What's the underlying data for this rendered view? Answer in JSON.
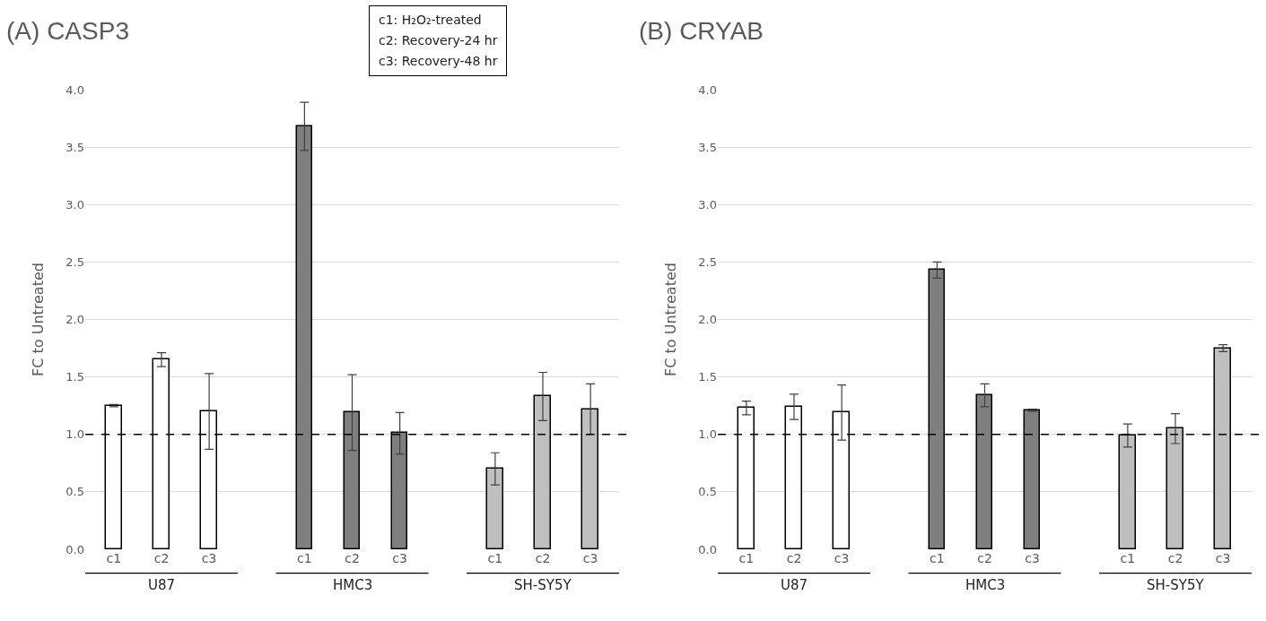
{
  "chart_data": [
    {
      "type": "bar",
      "title": "(A) CASP3",
      "ylabel": "FC to Untreated",
      "categories": [
        "c1",
        "c2",
        "c3",
        null,
        "c1",
        "c2",
        "c3",
        null,
        "c1",
        "c2",
        "c3"
      ],
      "series": [
        {
          "name": "U87",
          "color": "#ffffff",
          "values": [
            1.25,
            1.65,
            1.2,
            null,
            null,
            null,
            null,
            null,
            null,
            null,
            null
          ],
          "errors": [
            0.01,
            0.06,
            0.33,
            null,
            null,
            null,
            null,
            null,
            null,
            null,
            null
          ]
        },
        {
          "name": "HMC3",
          "color": "#7f7f7f",
          "values": [
            null,
            null,
            null,
            null,
            3.68,
            1.19,
            1.01,
            null,
            null,
            null,
            null
          ],
          "errors": [
            null,
            null,
            null,
            null,
            0.21,
            0.33,
            0.18,
            null,
            null,
            null,
            null
          ]
        },
        {
          "name": "SH-SY5Y",
          "color": "#bfbfbf",
          "values": [
            null,
            null,
            null,
            null,
            null,
            null,
            null,
            null,
            0.7,
            1.33,
            1.22
          ],
          "errors": [
            null,
            null,
            null,
            null,
            null,
            null,
            null,
            null,
            0.14,
            0.21,
            0.22
          ]
        }
      ],
      "ylim": [
        0,
        4
      ],
      "yticks": [
        {
          "value": 0,
          "label": "0.0"
        },
        0.5,
        {
          "value": 1,
          "label": "1.0"
        },
        1.5,
        {
          "value": 2,
          "label": "2.0"
        },
        2.5,
        {
          "value": 3,
          "label": "3.0"
        },
        3.5,
        {
          "value": 4,
          "label": "4.0"
        }
      ],
      "grid": "y",
      "ref_lines": [
        {
          "axis": "y",
          "value": 1,
          "color": "#000000",
          "line_style": "dashed"
        }
      ],
      "annotations": [
        "c1:  H₂O₂-treated",
        "c2:  Recovery-24 hr",
        "c3:  Recovery-48 hr"
      ]
    },
    {
      "type": "bar",
      "title": "(B) CRYAB",
      "ylabel": "FC to Untreated",
      "categories": [
        "c1",
        "c2",
        "c3",
        null,
        "c1",
        "c2",
        "c3",
        null,
        "c1",
        "c2",
        "c3"
      ],
      "series": [
        {
          "name": "U87",
          "color": "#ffffff",
          "values": [
            1.23,
            1.24,
            1.19,
            null,
            null,
            null,
            null,
            null,
            null,
            null,
            null
          ],
          "errors": [
            0.06,
            0.11,
            0.24,
            null,
            null,
            null,
            null,
            null,
            null,
            null,
            null
          ]
        },
        {
          "name": "HMC3",
          "color": "#7f7f7f",
          "values": [
            null,
            null,
            null,
            null,
            2.43,
            1.34,
            1.21,
            null,
            null,
            null,
            null
          ],
          "errors": [
            null,
            null,
            null,
            null,
            0.07,
            0.1,
            0.01,
            null,
            null,
            null,
            null
          ]
        },
        {
          "name": "SH-SY5Y",
          "color": "#bfbfbf",
          "values": [
            null,
            null,
            null,
            null,
            null,
            null,
            null,
            null,
            0.99,
            1.05,
            1.75
          ],
          "errors": [
            null,
            null,
            null,
            null,
            null,
            null,
            null,
            null,
            0.1,
            0.13,
            0.03
          ]
        }
      ],
      "ylim": [
        0,
        4
      ],
      "yticks": [
        {
          "value": 0,
          "label": "0.0"
        },
        0.5,
        {
          "value": 1,
          "label": "1.0"
        },
        1.5,
        {
          "value": 2,
          "label": "2.0"
        },
        2.5,
        {
          "value": 3,
          "label": "3.0"
        },
        3.5,
        {
          "value": 4,
          "label": "4.0"
        }
      ],
      "grid": "y",
      "ref_lines": [
        {
          "axis": "y",
          "value": 1,
          "color": "#000000",
          "line_style": "dashed"
        }
      ]
    }
  ]
}
